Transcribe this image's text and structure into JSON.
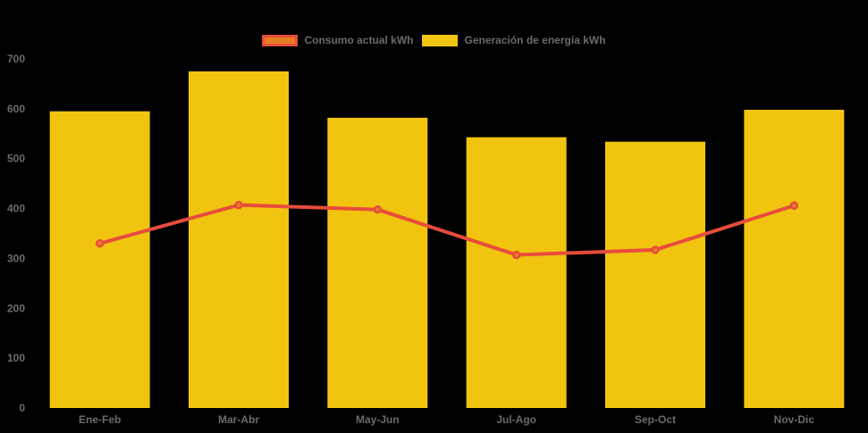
{
  "app": {
    "background_color": "#000000",
    "text_color": "#6b6b6b"
  },
  "legend": {
    "position": "top-center",
    "items": [
      {
        "label": "Consumo actual kWh",
        "swatch_fill": "#E67E22",
        "swatch_border": "#E74C3C"
      },
      {
        "label": "Generación de energía kWh",
        "swatch_fill": "#F1C40F",
        "swatch_border": "#F1C40F"
      }
    ]
  },
  "chart_data": {
    "type": "bar",
    "subtype": "bar-and-line-combo",
    "title": "",
    "xlabel": "",
    "ylabel": "",
    "categories": [
      "Ene-Feb",
      "Mar-Abr",
      "May-Jun",
      "Jul-Ago",
      "Sep-Oct",
      "Nov-Dic"
    ],
    "series": [
      {
        "name": "Generación de energía kWh",
        "type": "bar",
        "color": "#F1C40F",
        "values": [
          595,
          675,
          582,
          543,
          534,
          598
        ]
      },
      {
        "name": "Consumo actual kWh",
        "type": "line",
        "color": "#E74C3C",
        "point_fill": "#E67E22",
        "point_stroke": "#E74C3C",
        "values": [
          330,
          407,
          398,
          307,
          317,
          406
        ]
      }
    ],
    "y_axis": {
      "min": 0,
      "max": 700,
      "step": 100,
      "tick_labels": [
        "0",
        "100",
        "200",
        "300",
        "400",
        "500",
        "600",
        "700"
      ]
    },
    "grid": false,
    "axis_lines": false,
    "legend_position": "top"
  }
}
